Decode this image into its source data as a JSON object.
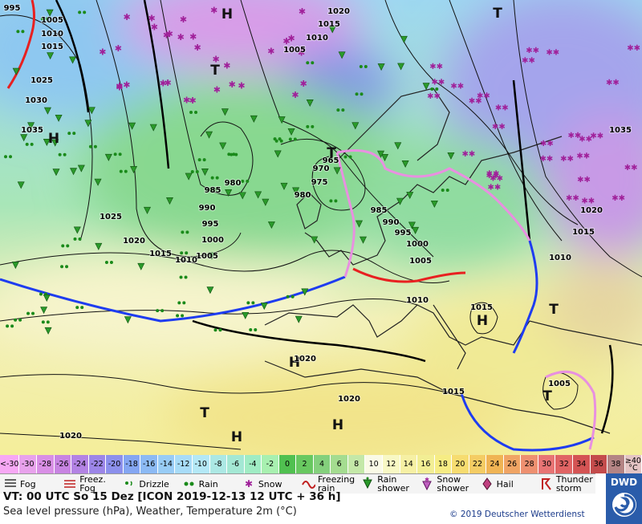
{
  "map": {
    "labels": [
      "995",
      "1005",
      "1010",
      "1015",
      "1025",
      "1030",
      "1035",
      "H",
      "1020",
      "1015",
      "1010",
      "1005",
      "H",
      "T",
      "T",
      "980",
      "985",
      "990",
      "995",
      "1000",
      "1005",
      "1010",
      "1015",
      "1020",
      "1025",
      "965",
      "970",
      "975",
      "980",
      "985",
      "990",
      "995",
      "1000",
      "1005",
      "1010",
      "1015",
      "H",
      "T",
      "1010",
      "1015",
      "1020",
      "1035",
      "1005",
      "T",
      "1015",
      "1020",
      "H",
      "T",
      "H",
      "1020",
      "H",
      "1020",
      "T"
    ]
  },
  "legend": {
    "temperature_scale": {
      "labels": [
        "<-30",
        "-30",
        "-28",
        "-26",
        "-24",
        "-22",
        "-20",
        "-18",
        "-16",
        "-14",
        "-12",
        "-10",
        "-8",
        "-6",
        "-4",
        "-2",
        "0",
        "2",
        "4",
        "6",
        "8",
        "10",
        "12",
        "14",
        "16",
        "18",
        "20",
        "22",
        "24",
        "26",
        "28",
        "30",
        "32",
        "34",
        "36",
        "38",
        "≥40 °C"
      ],
      "colors": [
        "#f7a8f4",
        "#e8a2ec",
        "#d98fe6",
        "#c884e2",
        "#b383e4",
        "#9c86e8",
        "#8c90ec",
        "#84a6f2",
        "#8cbaf4",
        "#98ccf6",
        "#a8dcf8",
        "#b4e8f6",
        "#ace8e4",
        "#a4e8d4",
        "#a0ecc4",
        "#a8f0b0",
        "#50c050",
        "#68c860",
        "#84d07c",
        "#a4dc90",
        "#c4e8a8",
        "#fafae6",
        "#f8f8c4",
        "#f6f0a4",
        "#f2ee94",
        "#f6ec84",
        "#f6dc70",
        "#f4cc64",
        "#f0b454",
        "#f0a464",
        "#ee9070",
        "#e87474",
        "#e06464",
        "#d45454",
        "#c44c4c",
        "#b48484",
        "#e4c4c4"
      ]
    },
    "weather": [
      "Fog",
      "Freez.\nFog",
      "Drizzle",
      "Rain",
      "Snow",
      "Freezing\nrain",
      "Rain\nshower",
      "Snow\nshower",
      "Hail",
      "Thunder\nstorm"
    ],
    "valid_time": "VT: 00 UTC So  15 Dez [ICON 2019-12-13  12 UTC + 36 h]",
    "description": "Sea level pressure (hPa), Weather, Temperature 2m (°C)",
    "copyright": "© 2019 Deutscher Wetterdienst",
    "logo": "DWD"
  }
}
